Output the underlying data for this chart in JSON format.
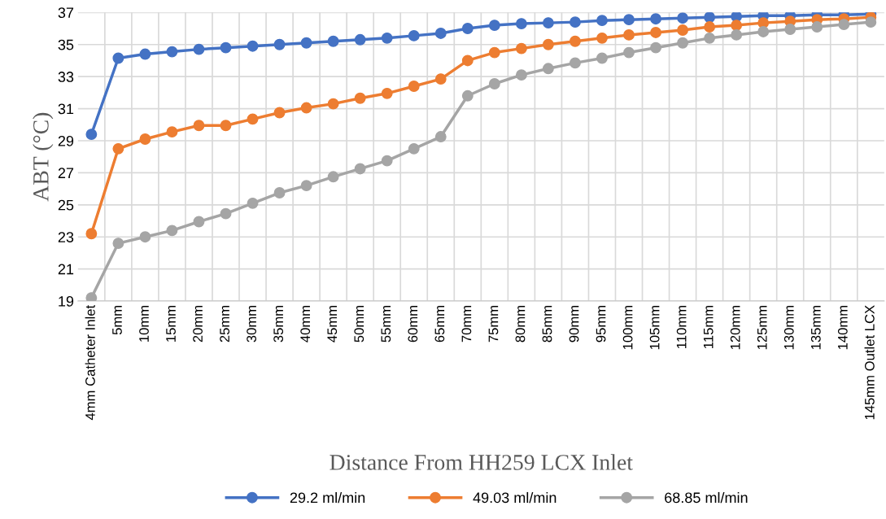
{
  "chart_data": {
    "type": "line",
    "xlabel": "Distance From HH259 LCX Inlet",
    "ylabel": "ABT (°C)",
    "categories": [
      "4mm Catheter Inlet",
      "5mm",
      "10mm",
      "15mm",
      "20mm",
      "25mm",
      "30mm",
      "35mm",
      "40mm",
      "45mm",
      "50mm",
      "55mm",
      "60mm",
      "65mm",
      "70mm",
      "75mm",
      "80mm",
      "85mm",
      "90mm",
      "95mm",
      "100mm",
      "105mm",
      "110mm",
      "115mm",
      "120mm",
      "125mm",
      "130mm",
      "135mm",
      "140mm",
      "145mm Outlet LCX"
    ],
    "series": [
      {
        "name": "29.2 ml/min",
        "color": "#4472c4",
        "values": [
          29.4,
          34.15,
          34.4,
          34.55,
          34.7,
          34.8,
          34.9,
          35.0,
          35.1,
          35.2,
          35.3,
          35.4,
          35.55,
          35.7,
          36.0,
          36.2,
          36.3,
          36.35,
          36.4,
          36.5,
          36.55,
          36.6,
          36.65,
          36.7,
          36.75,
          36.8,
          36.8,
          36.85,
          36.85,
          36.9
        ]
      },
      {
        "name": "49.03 ml/min",
        "color": "#ed7d31",
        "values": [
          23.2,
          28.5,
          29.1,
          29.55,
          29.95,
          29.95,
          30.35,
          30.75,
          31.05,
          31.3,
          31.65,
          31.95,
          32.4,
          32.85,
          34.0,
          34.5,
          34.75,
          35.0,
          35.2,
          35.4,
          35.6,
          35.75,
          35.9,
          36.1,
          36.2,
          36.35,
          36.45,
          36.55,
          36.6,
          36.7
        ]
      },
      {
        "name": "68.85 ml/min",
        "color": "#a5a5a5",
        "values": [
          19.2,
          22.6,
          23.0,
          23.4,
          23.95,
          24.45,
          25.1,
          25.75,
          26.2,
          26.75,
          27.25,
          27.75,
          28.5,
          29.25,
          31.8,
          32.55,
          33.1,
          33.5,
          33.85,
          34.15,
          34.5,
          34.8,
          35.1,
          35.4,
          35.6,
          35.8,
          35.95,
          36.1,
          36.25,
          36.4
        ]
      }
    ],
    "ylim": [
      19,
      37
    ],
    "yticks": [
      19,
      21,
      23,
      25,
      27,
      29,
      31,
      33,
      35,
      37
    ],
    "grid": true,
    "legend": "bottom",
    "marker": "circle",
    "line_style": "solid"
  }
}
